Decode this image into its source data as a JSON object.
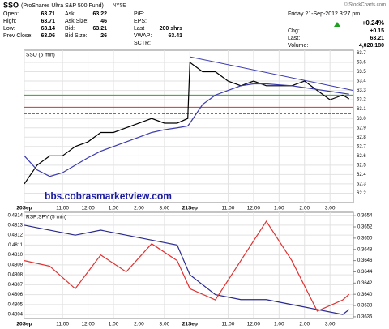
{
  "header": {
    "symbol": "SSO",
    "name": "(ProShares Ultra S&P 500 Fund)",
    "exchange": "NYSE",
    "copyright": "© StockCharts.com",
    "datetime": "Friday  21-Sep-2012  3:27 pm",
    "quote_cols": [
      [
        {
          "label": "Open:",
          "value": "63.71"
        },
        {
          "label": "High:",
          "value": "63.71"
        },
        {
          "label": "Low:",
          "value": "63.14"
        },
        {
          "label": "Prev Close:",
          "value": "63.06"
        }
      ],
      [
        {
          "label": "Ask:",
          "value": "63.22"
        },
        {
          "label": "Ask Size:",
          "value": "46"
        },
        {
          "label": "Bid:",
          "value": "63.21"
        },
        {
          "label": "Bid Size:",
          "value": "26"
        }
      ],
      [
        {
          "label": "P/E:"
        },
        {
          "label": "EPS:"
        },
        {
          "label": "Last",
          "value": "200 shrs"
        },
        {
          "label": "VWAP:",
          "value": "63.41"
        },
        {
          "label": "SCTR:"
        }
      ]
    ],
    "change_pct": "+0.24%",
    "right": [
      {
        "label": "Chg:",
        "value": "+0.15"
      },
      {
        "label": "Last:",
        "value": "63.21"
      },
      {
        "label": "Volume:",
        "value": "4,020,180"
      }
    ]
  },
  "chart_data": [
    {
      "type": "line",
      "panel_label": "SSO (5 min)",
      "annotation": "bbs.cobrasmarketview.com",
      "x": [
        0,
        6,
        12,
        18,
        24,
        30,
        36,
        42,
        48,
        54,
        60,
        66,
        72,
        77,
        78,
        84,
        90,
        96,
        102,
        108,
        114,
        120,
        126,
        132,
        138,
        144,
        150,
        153
      ],
      "series": [
        {
          "color": "#000000",
          "values": [
            62.3,
            62.5,
            62.6,
            62.6,
            62.7,
            62.75,
            62.85,
            62.85,
            62.9,
            62.95,
            63.0,
            62.95,
            62.95,
            63.0,
            63.6,
            63.5,
            63.5,
            63.4,
            63.35,
            63.4,
            63.35,
            63.35,
            63.35,
            63.4,
            63.3,
            63.2,
            63.25,
            63.21
          ]
        },
        {
          "color": "#3a3ab0",
          "values": [
            62.6,
            62.45,
            62.38,
            62.42,
            62.5,
            62.58,
            62.65,
            62.7,
            62.75,
            62.8,
            62.85,
            62.88,
            62.9,
            62.92,
            62.95,
            63.15,
            63.25,
            63.3,
            63.35,
            63.37,
            63.37,
            63.36,
            63.35,
            63.33,
            63.31,
            63.29,
            63.27,
            63.26
          ]
        }
      ],
      "levels": [
        {
          "value": 63.7,
          "color": "#d83030"
        },
        {
          "value": 63.25,
          "color": "#30a030"
        },
        {
          "value": 63.12,
          "color": "#d83030"
        },
        {
          "value": 63.05,
          "color": "#606060",
          "dashed": true
        }
      ],
      "trendline": {
        "color": "#3a3ab0",
        "x": [
          78,
          155
        ],
        "values": [
          63.66,
          63.3
        ]
      },
      "xlim": [
        0,
        155
      ],
      "xticks": [
        {
          "value": 0,
          "label": "20Sep"
        },
        {
          "value": 18,
          "label": "11:00"
        },
        {
          "value": 30,
          "label": "12:00"
        },
        {
          "value": 42,
          "label": "1:00"
        },
        {
          "value": 54,
          "label": "2:00"
        },
        {
          "value": 66,
          "label": "3:00"
        },
        {
          "value": 78,
          "label": "21Sep"
        },
        {
          "value": 96,
          "label": "11:00"
        },
        {
          "value": 108,
          "label": "12:00"
        },
        {
          "value": 120,
          "label": "1:00"
        },
        {
          "value": 132,
          "label": "2:00"
        },
        {
          "value": 144,
          "label": "3:00"
        }
      ],
      "ylim": [
        62.1,
        63.73
      ],
      "yticks": [
        62.2,
        62.3,
        62.4,
        62.5,
        62.6,
        62.7,
        62.8,
        62.9,
        {
          "value": 63,
          "label": "63.0"
        },
        63.1,
        63.2,
        63.3,
        63.4,
        63.5,
        63.6,
        63.7
      ],
      "grid": true
    },
    {
      "type": "line",
      "panel_label": "RSP:SPY (5 min)",
      "x": [
        0,
        12,
        24,
        36,
        48,
        60,
        72,
        78,
        90,
        102,
        114,
        126,
        138,
        150,
        153
      ],
      "series": [
        {
          "color": "#2a2a90",
          "values": [
            0.4813,
            0.48125,
            0.4812,
            0.48125,
            0.4812,
            0.48115,
            0.4811,
            0.4808,
            0.4806,
            0.48055,
            0.48055,
            0.4805,
            0.48045,
            0.4804,
            0.48045
          ]
        },
        {
          "color": "#e03030",
          "axis": "y2",
          "values": [
            0.3646,
            0.3645,
            0.3641,
            0.3647,
            0.3644,
            0.3649,
            0.3646,
            0.3641,
            0.3639,
            0.3646,
            0.3653,
            0.3646,
            0.3637,
            0.3639,
            0.364
          ]
        }
      ],
      "xlim": [
        0,
        155
      ],
      "xticks": [
        {
          "value": 0,
          "label": "20Sep"
        },
        {
          "value": 18,
          "label": "11:00"
        },
        {
          "value": 30,
          "label": "12:00"
        },
        {
          "value": 42,
          "label": "1:00"
        },
        {
          "value": 54,
          "label": "2:00"
        },
        {
          "value": 66,
          "label": "3:00"
        },
        {
          "value": 78,
          "label": "21Sep"
        },
        {
          "value": 96,
          "label": "11:00"
        },
        {
          "value": 108,
          "label": "12:00"
        },
        {
          "value": 120,
          "label": "1:00"
        },
        {
          "value": 132,
          "label": "2:00"
        },
        {
          "value": 144,
          "label": "3:00"
        }
      ],
      "ylim": [
        0.48036,
        0.48143
      ],
      "yticks": [
        0.4804,
        0.4805,
        0.4806,
        0.4807,
        0.4808,
        0.4809,
        {
          "value": 0.481,
          "label": "0.4810"
        },
        0.4811,
        0.4812,
        0.4813,
        0.4814
      ],
      "y2lim": [
        0.36357,
        0.36546
      ],
      "y2ticks": [
        0.3636,
        0.3638,
        {
          "value": 0.364,
          "label": "0.3640"
        },
        0.3642,
        0.3644,
        0.3646,
        0.3648,
        {
          "value": 0.365,
          "label": "0.3650"
        },
        0.3652,
        0.3654
      ],
      "grid": true
    }
  ]
}
